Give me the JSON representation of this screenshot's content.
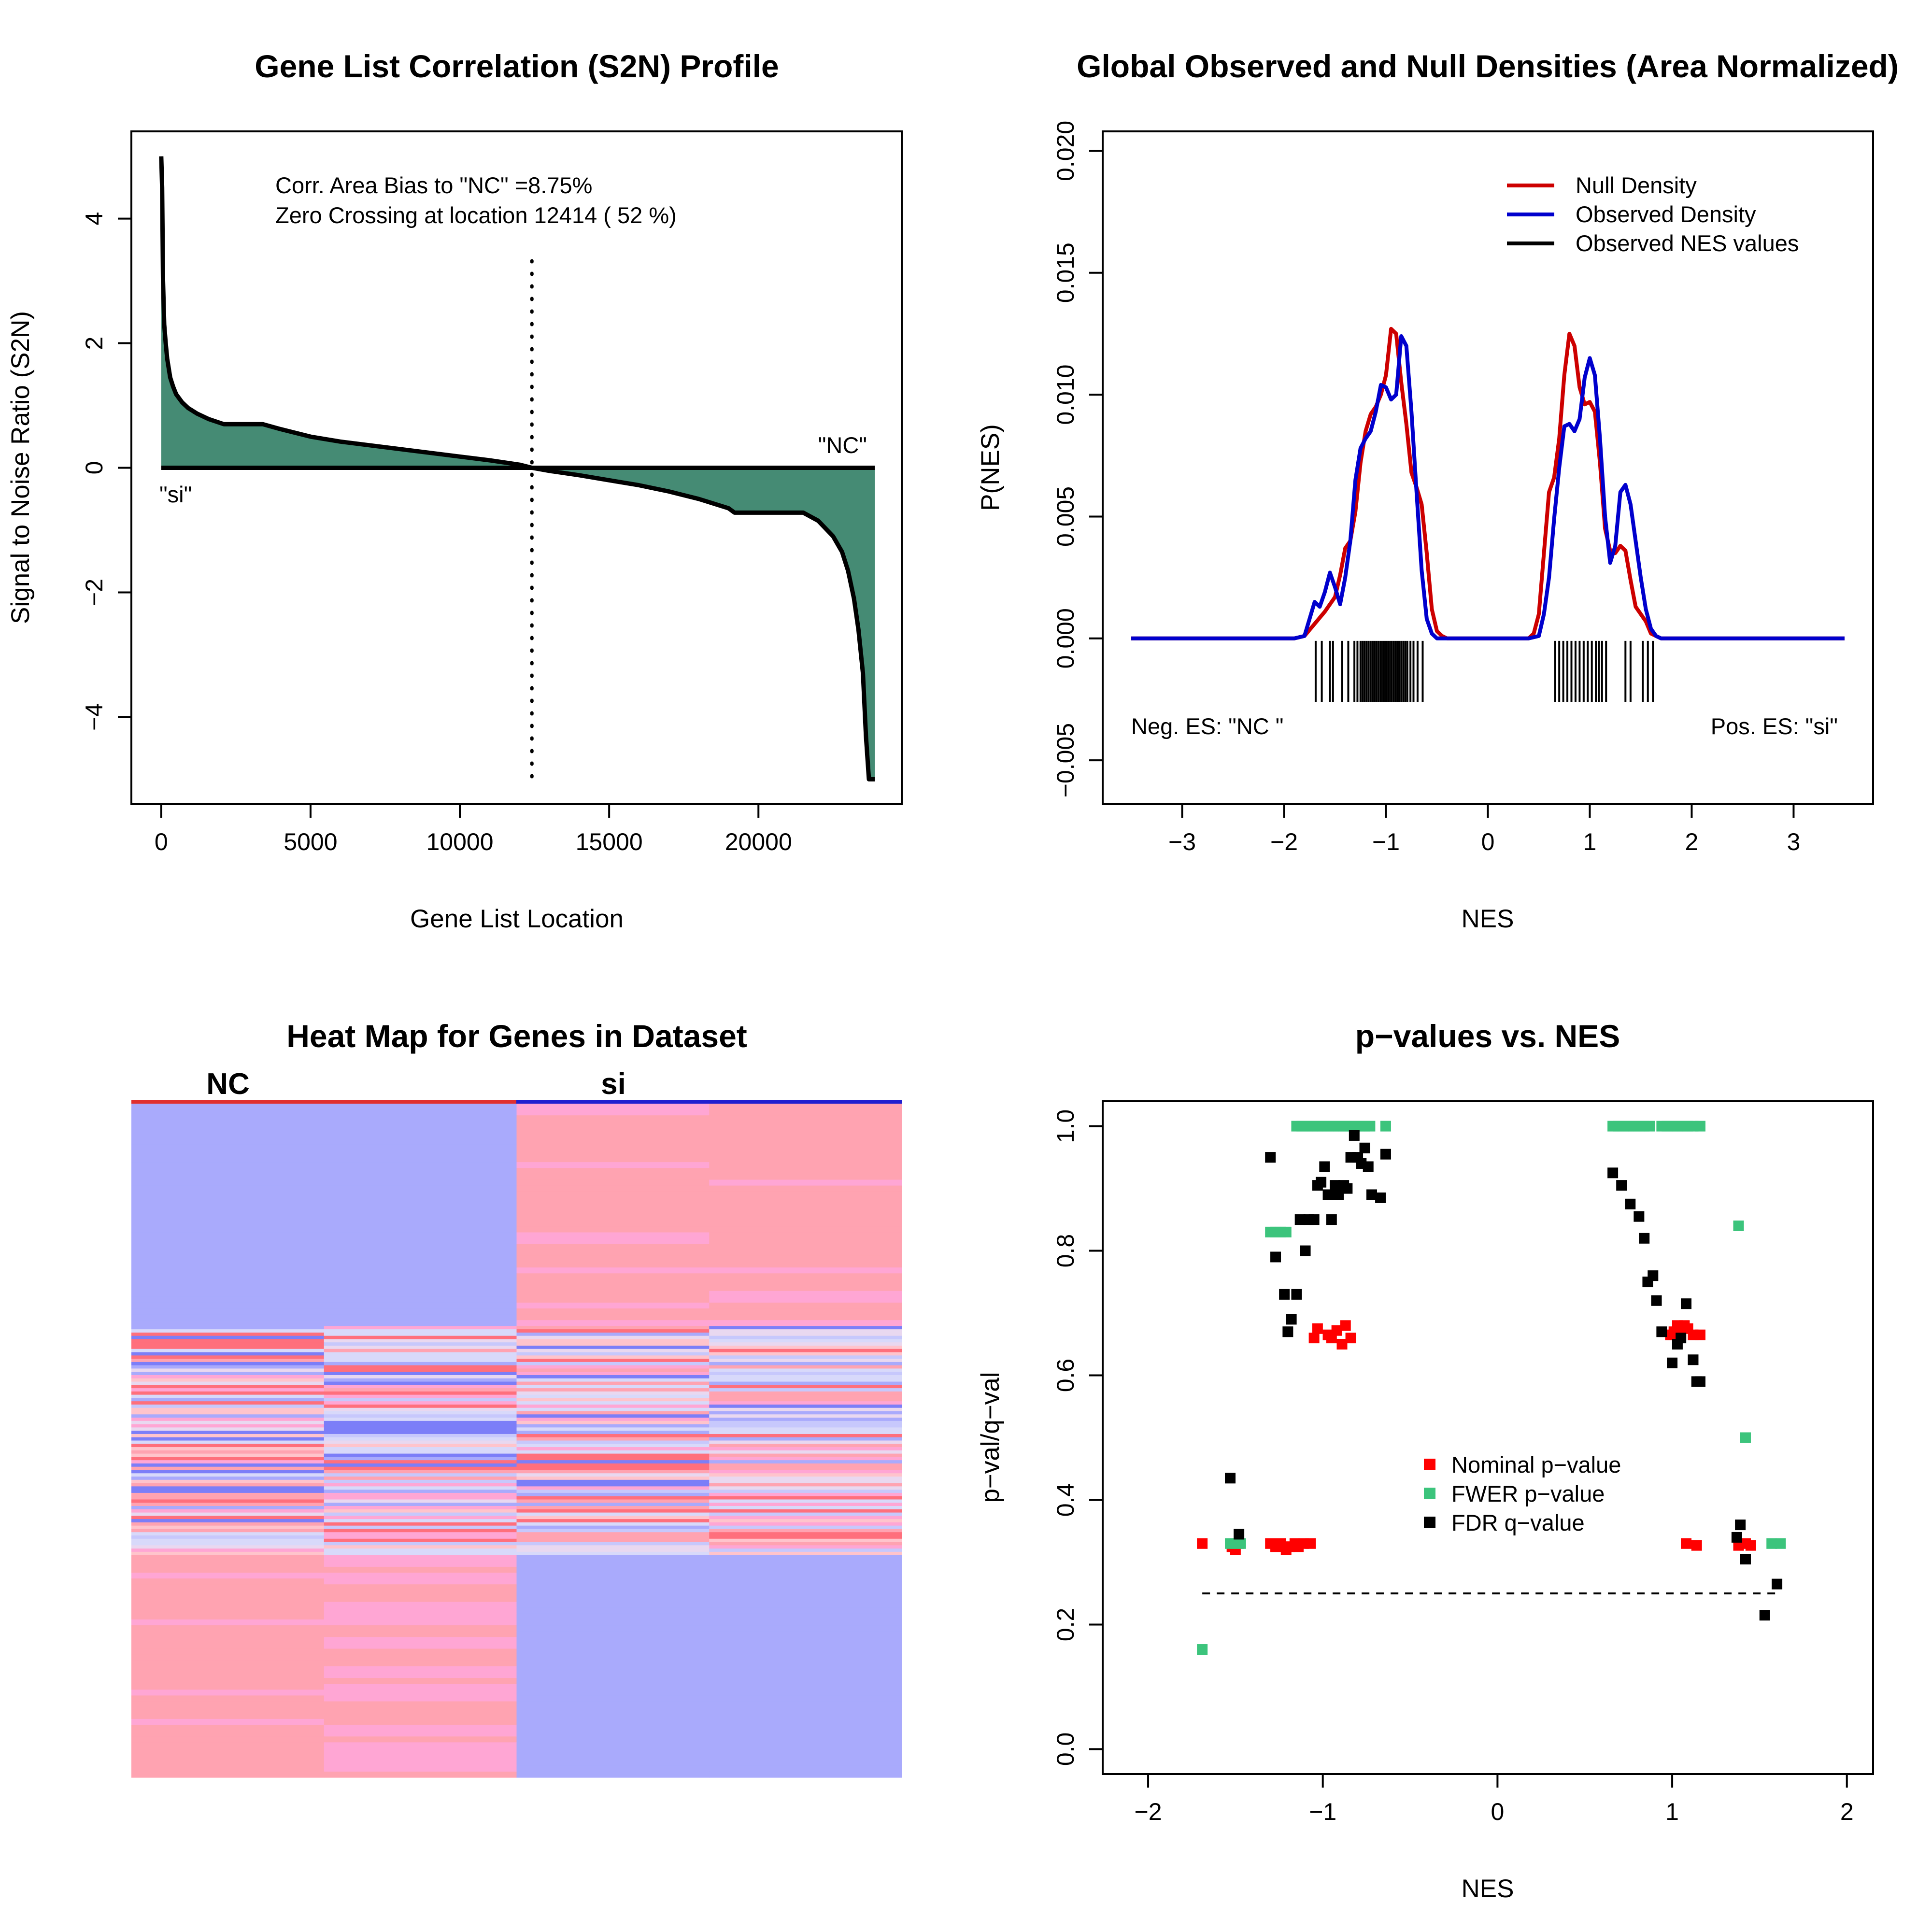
{
  "colors": {
    "fill": "#458B74",
    "null_density": "#CD0000",
    "observed_density": "#0000CD",
    "nominal": "#FF0000",
    "fwer": "#3CC47C",
    "fdr": "#000000",
    "heat_blue": "#A9AAFC",
    "heat_red": "#FFA3B1",
    "heat_pink": "#FFA6D4",
    "heat_red_strong": "#FF6F7C",
    "heat_blue_strong": "#7C7EF8",
    "nc_bar": "#E03030",
    "si_bar": "#2020D0"
  },
  "chart_data": [
    {
      "type": "area",
      "title": "Gene List Correlation (S2N) Profile",
      "xlabel": "Gene List Location",
      "ylabel": "Signal to Noise Ratio (S2N)",
      "xlim": [
        -1000,
        24800
      ],
      "ylim": [
        -5.4,
        5.4
      ],
      "xticks": [
        0,
        5000,
        10000,
        15000,
        20000
      ],
      "xtick_labels": [
        "0",
        "5000",
        "10000",
        "15000",
        "20000"
      ],
      "yticks": [
        -4,
        -2,
        0,
        2,
        4
      ],
      "ytick_labels": [
        "−4",
        "−2",
        "0",
        "2",
        "4"
      ],
      "x": [
        0,
        30,
        60,
        100,
        150,
        200,
        300,
        400,
        500,
        700,
        900,
        1200,
        1600,
        2100,
        2600,
        3000,
        3400,
        4000,
        5000,
        6000,
        7000,
        8000,
        9000,
        10000,
        11000,
        12000,
        12414,
        13000,
        14000,
        15000,
        16000,
        17000,
        18000,
        19000,
        19200,
        20000,
        21000,
        21500,
        22000,
        22500,
        22800,
        23000,
        23200,
        23350,
        23500,
        23600,
        23700,
        23800,
        23900
      ],
      "y": [
        5.0,
        4.5,
        3.0,
        2.3,
        2.0,
        1.75,
        1.45,
        1.3,
        1.18,
        1.05,
        0.96,
        0.87,
        0.78,
        0.7,
        0.7,
        0.7,
        0.7,
        0.62,
        0.5,
        0.42,
        0.36,
        0.3,
        0.24,
        0.18,
        0.12,
        0.05,
        0.0,
        -0.05,
        -0.12,
        -0.2,
        -0.28,
        -0.38,
        -0.5,
        -0.65,
        -0.72,
        -0.72,
        -0.72,
        -0.72,
        -0.85,
        -1.1,
        -1.35,
        -1.65,
        -2.1,
        -2.6,
        -3.3,
        -4.3,
        -5.0,
        -5.0,
        -5.0
      ],
      "zero_crossing": 12414,
      "annotations": [
        "Corr. Area Bias to \"NC\" =8.75%",
        "Zero Crossing at location  12414  ( 52  %)"
      ],
      "side_labels": [
        "\"NC\"",
        "\"si\""
      ]
    },
    {
      "type": "line",
      "title": "Global Observed and Null Densities (Area Normalized)",
      "xlabel": "NES",
      "ylabel": "P(NES)",
      "xlim": [
        -3.78,
        3.78
      ],
      "ylim": [
        -0.0068,
        0.0208
      ],
      "xticks": [
        -3,
        -2,
        -1,
        0,
        1,
        2,
        3
      ],
      "xtick_labels": [
        "−3",
        "−2",
        "−1",
        "0",
        "1",
        "2",
        "3"
      ],
      "yticks": [
        -0.005,
        0.0,
        0.005,
        0.01,
        0.015,
        0.02
      ],
      "ytick_labels": [
        "−0.005",
        "0.000",
        "0.005",
        "0.010",
        "0.015",
        "0.020"
      ],
      "series": [
        {
          "name": "Null Density",
          "x": [
            -3.5,
            -1.9,
            -1.8,
            -1.7,
            -1.6,
            -1.5,
            -1.45,
            -1.4,
            -1.35,
            -1.3,
            -1.25,
            -1.2,
            -1.15,
            -1.1,
            -1.05,
            -1.0,
            -0.95,
            -0.9,
            -0.85,
            -0.8,
            -0.75,
            -0.7,
            -0.65,
            -0.6,
            -0.55,
            -0.5,
            -0.45,
            -0.4,
            0.4,
            0.45,
            0.5,
            0.55,
            0.6,
            0.65,
            0.7,
            0.75,
            0.8,
            0.85,
            0.9,
            0.95,
            1.0,
            1.05,
            1.1,
            1.15,
            1.2,
            1.25,
            1.3,
            1.35,
            1.4,
            1.45,
            1.5,
            1.55,
            1.6,
            1.7,
            1.8,
            3.5
          ],
          "y": [
            0.0,
            0.0,
            0.0001,
            0.0006,
            0.0011,
            0.0017,
            0.0026,
            0.0037,
            0.004,
            0.0052,
            0.0072,
            0.0085,
            0.0092,
            0.0095,
            0.01,
            0.0108,
            0.0127,
            0.0125,
            0.0105,
            0.0088,
            0.0068,
            0.0062,
            0.0055,
            0.0035,
            0.0012,
            0.0003,
            0.0001,
            0.0,
            0.0,
            0.0002,
            0.001,
            0.0035,
            0.006,
            0.0066,
            0.0082,
            0.0108,
            0.0125,
            0.012,
            0.0103,
            0.0096,
            0.0097,
            0.0093,
            0.0072,
            0.0045,
            0.0036,
            0.0035,
            0.0038,
            0.0036,
            0.0024,
            0.0013,
            0.001,
            0.0007,
            0.0002,
            0.0,
            0.0,
            0.0
          ]
        },
        {
          "name": "Observed Density",
          "x": [
            -3.5,
            -1.9,
            -1.8,
            -1.75,
            -1.7,
            -1.65,
            -1.6,
            -1.55,
            -1.5,
            -1.45,
            -1.4,
            -1.35,
            -1.3,
            -1.25,
            -1.2,
            -1.15,
            -1.1,
            -1.05,
            -1.0,
            -0.95,
            -0.9,
            -0.85,
            -0.8,
            -0.75,
            -0.7,
            -0.65,
            -0.6,
            -0.55,
            -0.5,
            -0.4,
            0.4,
            0.5,
            0.55,
            0.6,
            0.65,
            0.7,
            0.75,
            0.8,
            0.85,
            0.9,
            0.95,
            1.0,
            1.05,
            1.1,
            1.15,
            1.2,
            1.25,
            1.3,
            1.35,
            1.4,
            1.45,
            1.5,
            1.55,
            1.6,
            1.65,
            1.7,
            1.75,
            1.8,
            3.5
          ],
          "y": [
            0.0,
            0.0,
            0.0001,
            0.0008,
            0.0015,
            0.0013,
            0.0019,
            0.0027,
            0.0021,
            0.0014,
            0.0025,
            0.004,
            0.0065,
            0.0078,
            0.0082,
            0.0085,
            0.0093,
            0.0104,
            0.0103,
            0.0098,
            0.01,
            0.0124,
            0.012,
            0.0093,
            0.006,
            0.0028,
            0.0008,
            0.0002,
            0.0,
            0.0,
            0.0,
            0.0001,
            0.001,
            0.0025,
            0.0049,
            0.007,
            0.0087,
            0.0088,
            0.0085,
            0.009,
            0.0107,
            0.0115,
            0.0108,
            0.0082,
            0.005,
            0.0031,
            0.0038,
            0.006,
            0.0063,
            0.0055,
            0.004,
            0.0025,
            0.0012,
            0.0004,
            0.0001,
            0.0,
            0.0,
            0.0,
            0.0
          ]
        }
      ],
      "observed_nes": [
        -1.69,
        -1.63,
        -1.55,
        -1.52,
        -1.43,
        -1.37,
        -1.31,
        -1.28,
        -1.25,
        -1.23,
        -1.21,
        -1.19,
        -1.17,
        -1.15,
        -1.13,
        -1.11,
        -1.09,
        -1.07,
        -1.05,
        -1.03,
        -1.01,
        -0.99,
        -0.97,
        -0.95,
        -0.93,
        -0.91,
        -0.89,
        -0.87,
        -0.85,
        -0.83,
        -0.81,
        -0.79,
        -0.76,
        -0.73,
        -0.69,
        -0.64,
        0.66,
        0.7,
        0.74,
        0.78,
        0.82,
        0.86,
        0.9,
        0.94,
        0.98,
        1.02,
        1.06,
        1.09,
        1.12,
        1.16,
        1.35,
        1.4,
        1.52,
        1.57,
        1.62
      ],
      "legend": [
        "Null Density",
        "Observed Density",
        "Observed NES values"
      ],
      "legend_position": "top-right",
      "annotations": [
        "Neg. ES: \"NC \"",
        "Pos. ES: \"si\""
      ]
    },
    {
      "type": "heatmap",
      "title": "Heat Map for Genes in Dataset",
      "columns": [
        "NC",
        "si"
      ],
      "blocks": [
        {
          "rows": 0.33,
          "pattern": [
            "blue",
            "blue",
            "red",
            "red"
          ]
        },
        {
          "rows": 0.34,
          "pattern": [
            "mixed",
            "mixed",
            "mixed",
            "mixed"
          ]
        },
        {
          "rows": 0.33,
          "pattern": [
            "red",
            "pink",
            "blue",
            "blue"
          ]
        }
      ]
    },
    {
      "type": "scatter",
      "title": "p−values vs. NES",
      "xlabel": "NES",
      "ylabel": "p−val/q−val",
      "xlim": [
        -2.26,
        2.15
      ],
      "ylim": [
        -0.04,
        1.04
      ],
      "xticks": [
        -2,
        -1,
        0,
        1,
        2
      ],
      "xtick_labels": [
        "−2",
        "−1",
        "0",
        "1",
        "2"
      ],
      "yticks": [
        0.0,
        0.2,
        0.4,
        0.6,
        0.8,
        1.0
      ],
      "ytick_labels": [
        "0.0",
        "0.2",
        "0.4",
        "0.6",
        "0.8",
        "1.0"
      ],
      "threshold": 0.25,
      "threshold_range": [
        -1.69,
        1.62
      ],
      "legend": [
        "Nominal p−value",
        "FWER p−value",
        "FDR q−value"
      ],
      "legend_position": "center",
      "series": [
        {
          "name": "Nominal p−value",
          "x": [
            -1.69,
            -1.52,
            -1.5,
            -1.48,
            -1.3,
            -1.27,
            -1.24,
            -1.21,
            -1.19,
            -1.16,
            -1.14,
            -1.11,
            -1.07,
            -1.05,
            -1.03,
            -0.97,
            -0.95,
            -0.92,
            -0.89,
            -0.87,
            -0.84,
            0.99,
            1.01,
            1.03,
            1.05,
            1.07,
            1.09,
            1.12,
            1.16,
            1.08,
            1.14,
            1.38,
            1.42,
            1.45
          ],
          "y": [
            0.33,
            0.325,
            0.32,
            0.33,
            0.33,
            0.325,
            0.33,
            0.32,
            0.325,
            0.33,
            0.325,
            0.33,
            0.33,
            0.66,
            0.675,
            0.665,
            0.66,
            0.672,
            0.65,
            0.68,
            0.66,
            0.665,
            0.67,
            0.68,
            0.665,
            0.68,
            0.675,
            0.665,
            0.665,
            0.33,
            0.327,
            0.327,
            0.33,
            0.327
          ]
        },
        {
          "name": "FWER p−value",
          "x": [
            -1.69,
            -1.53,
            -1.5,
            -1.47,
            -1.3,
            -1.27,
            -1.24,
            -1.21,
            -1.15,
            -1.12,
            -1.09,
            -1.06,
            -1.03,
            -1.0,
            -0.97,
            -0.94,
            -0.91,
            -0.88,
            -0.85,
            -0.82,
            -0.79,
            -0.76,
            -0.73,
            -0.64,
            0.66,
            0.69,
            0.72,
            0.75,
            0.78,
            0.81,
            0.84,
            0.87,
            0.94,
            0.97,
            1.0,
            1.03,
            1.06,
            1.09,
            1.12,
            1.16,
            1.38,
            1.42,
            1.57,
            1.62
          ],
          "y": [
            0.16,
            0.33,
            0.33,
            0.33,
            0.83,
            0.83,
            0.83,
            0.83,
            1.0,
            1.0,
            1.0,
            1.0,
            1.0,
            1.0,
            1.0,
            1.0,
            1.0,
            1.0,
            1.0,
            1.0,
            1.0,
            1.0,
            1.0,
            1.0,
            1.0,
            1.0,
            1.0,
            1.0,
            1.0,
            1.0,
            1.0,
            1.0,
            1.0,
            1.0,
            1.0,
            1.0,
            1.0,
            1.0,
            1.0,
            1.0,
            0.84,
            0.5,
            0.33,
            0.33
          ]
        },
        {
          "name": "FDR q−value",
          "x": [
            -1.53,
            -1.48,
            -1.3,
            -1.27,
            -1.22,
            -1.2,
            -1.18,
            -1.15,
            -1.13,
            -1.1,
            -1.08,
            -1.05,
            -1.03,
            -1.01,
            -0.99,
            -0.97,
            -0.95,
            -0.93,
            -0.91,
            -0.88,
            -0.86,
            -0.84,
            -0.82,
            -0.8,
            -0.78,
            -0.76,
            -0.74,
            -0.72,
            -0.67,
            -0.64,
            0.66,
            0.71,
            0.76,
            0.81,
            0.84,
            0.86,
            0.89,
            0.91,
            0.94,
            1.0,
            1.03,
            1.05,
            1.08,
            1.12,
            1.14,
            1.16,
            1.37,
            1.39,
            1.42,
            1.53,
            1.6
          ],
          "y": [
            0.435,
            0.345,
            0.95,
            0.79,
            0.73,
            0.67,
            0.69,
            0.73,
            0.85,
            0.8,
            0.85,
            0.85,
            0.905,
            0.91,
            0.935,
            0.89,
            0.85,
            0.905,
            0.89,
            0.905,
            0.9,
            0.95,
            0.985,
            0.95,
            0.94,
            0.965,
            0.935,
            0.89,
            0.885,
            0.955,
            0.925,
            0.905,
            0.875,
            0.855,
            0.82,
            0.75,
            0.76,
            0.72,
            0.67,
            0.62,
            0.65,
            0.66,
            0.715,
            0.625,
            0.59,
            0.59,
            0.34,
            0.36,
            0.305,
            0.215,
            0.265
          ]
        }
      ]
    }
  ]
}
